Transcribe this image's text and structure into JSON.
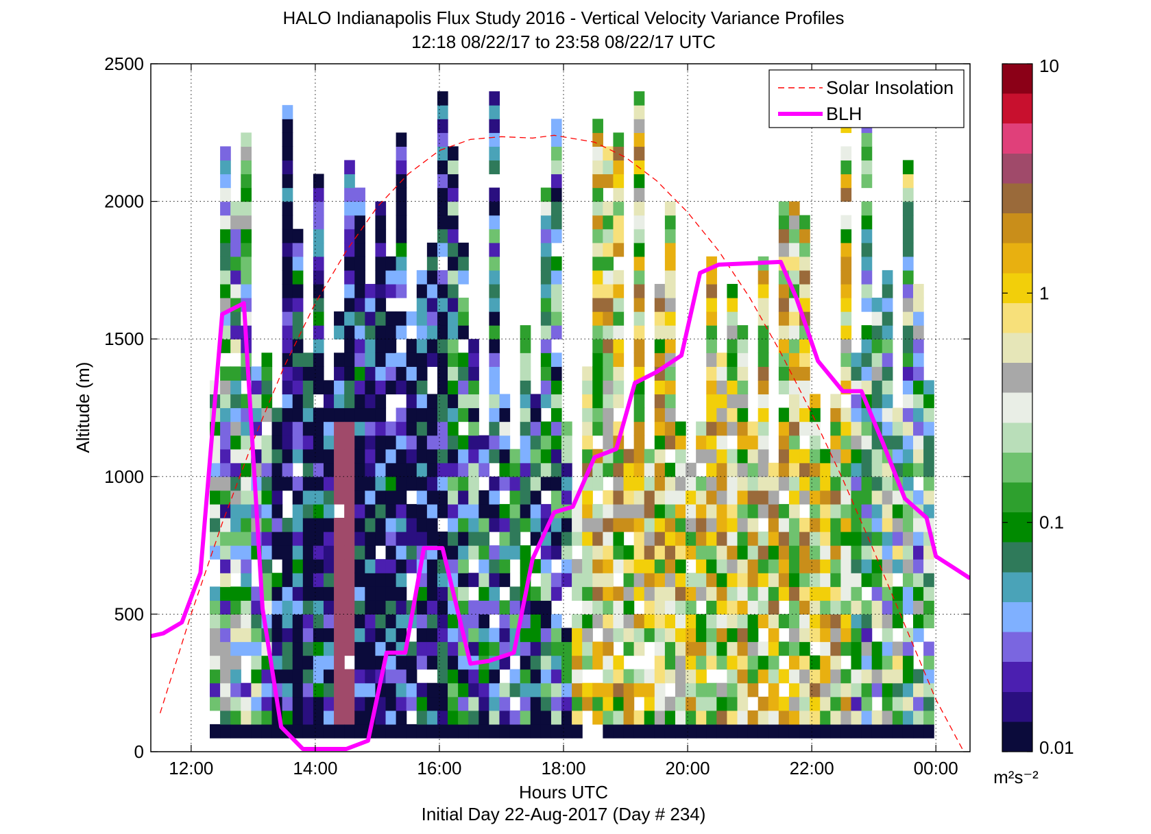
{
  "chart_data": {
    "type": "heatmap",
    "title": "HALO Indianapolis Flux Study 2016 - Vertical Velocity Variance Profiles",
    "subtitle": "12:18 08/22/17 to 23:58 08/22/17  UTC",
    "xlabel": "Hours UTC",
    "xlabel2": "Initial Day 22-Aug-2017 (Day # 234)",
    "ylabel": "Altitude (m)",
    "xlim": [
      11.35,
      24.55
    ],
    "ylim": [
      0,
      2500
    ],
    "x_ticks": [
      12,
      14,
      16,
      18,
      20,
      22,
      24
    ],
    "x_tick_labels": [
      "12:00",
      "14:00",
      "16:00",
      "18:00",
      "20:00",
      "22:00",
      "00:00"
    ],
    "y_ticks": [
      0,
      500,
      1000,
      1500,
      2000,
      2500
    ],
    "y_tick_labels": [
      "0",
      "500",
      "1000",
      "1500",
      "2000",
      "2500"
    ],
    "grid": true,
    "legend_position": "top-right",
    "colorbar": {
      "scale": "log",
      "range": [
        0.01,
        10
      ],
      "tick_values": [
        0.01,
        0.1,
        1,
        10
      ],
      "tick_labels": [
        "0.01",
        "0.1",
        "1",
        "10"
      ],
      "unit_label": "m²s⁻²",
      "colormap": [
        "#0b0b3b",
        "#2a0f80",
        "#4b1fb0",
        "#7a66e0",
        "#7fb0ff",
        "#4aa3b8",
        "#2f7a5a",
        "#008a00",
        "#2ea02e",
        "#6fc26f",
        "#b9deb9",
        "#e9eee6",
        "#a8a8a8",
        "#e6e6b8",
        "#f7e07a",
        "#f2cf0a",
        "#e8b010",
        "#c98e1a",
        "#9a6a3a",
        "#a04a6a",
        "#e0407a",
        "#c8102e",
        "#8b0017"
      ]
    },
    "time_range": [
      12.3,
      24.0
    ],
    "range_gates_m": {
      "start": 50,
      "step": 50,
      "count": 50
    },
    "bottom_gate_value": 0.01,
    "gap_in_bottom_gate": [
      18.3,
      18.6
    ],
    "series": [
      {
        "name": "Solar Insolation",
        "style": "dashed",
        "color": "#ff0000",
        "x": [
          11.5,
          12.0,
          12.5,
          13.0,
          13.5,
          14.0,
          14.5,
          15.0,
          15.5,
          16.0,
          16.5,
          17.0,
          17.5,
          17.85,
          18.5,
          19.0,
          19.5,
          20.0,
          20.5,
          21.0,
          21.5,
          22.0,
          22.5,
          23.0,
          23.5,
          24.0,
          24.45
        ],
        "y": [
          140,
          500,
          830,
          1130,
          1400,
          1630,
          1820,
          1980,
          2100,
          2185,
          2225,
          2235,
          2230,
          2240,
          2215,
          2160,
          2075,
          1960,
          1820,
          1650,
          1450,
          1230,
          990,
          730,
          460,
          190,
          0
        ]
      },
      {
        "name": "BLH",
        "style": "solid",
        "color": "#ff00ff",
        "x": [
          11.35,
          11.55,
          11.85,
          12.15,
          12.5,
          12.85,
          13.15,
          13.45,
          13.8,
          14.0,
          14.5,
          14.85,
          15.15,
          15.45,
          15.75,
          16.05,
          16.5,
          16.8,
          17.2,
          17.5,
          17.85,
          18.15,
          18.5,
          18.85,
          19.15,
          19.5,
          19.9,
          20.2,
          20.5,
          21.0,
          21.5,
          21.75,
          22.1,
          22.5,
          22.8,
          23.15,
          23.5,
          23.85,
          24.0,
          24.55
        ],
        "y": [
          420,
          430,
          470,
          650,
          1590,
          1630,
          520,
          90,
          10,
          10,
          10,
          40,
          360,
          360,
          740,
          740,
          320,
          330,
          360,
          700,
          870,
          890,
          1070,
          1100,
          1340,
          1380,
          1440,
          1740,
          1770,
          1775,
          1780,
          1650,
          1420,
          1310,
          1310,
          1120,
          920,
          850,
          710,
          630
        ]
      }
    ]
  }
}
